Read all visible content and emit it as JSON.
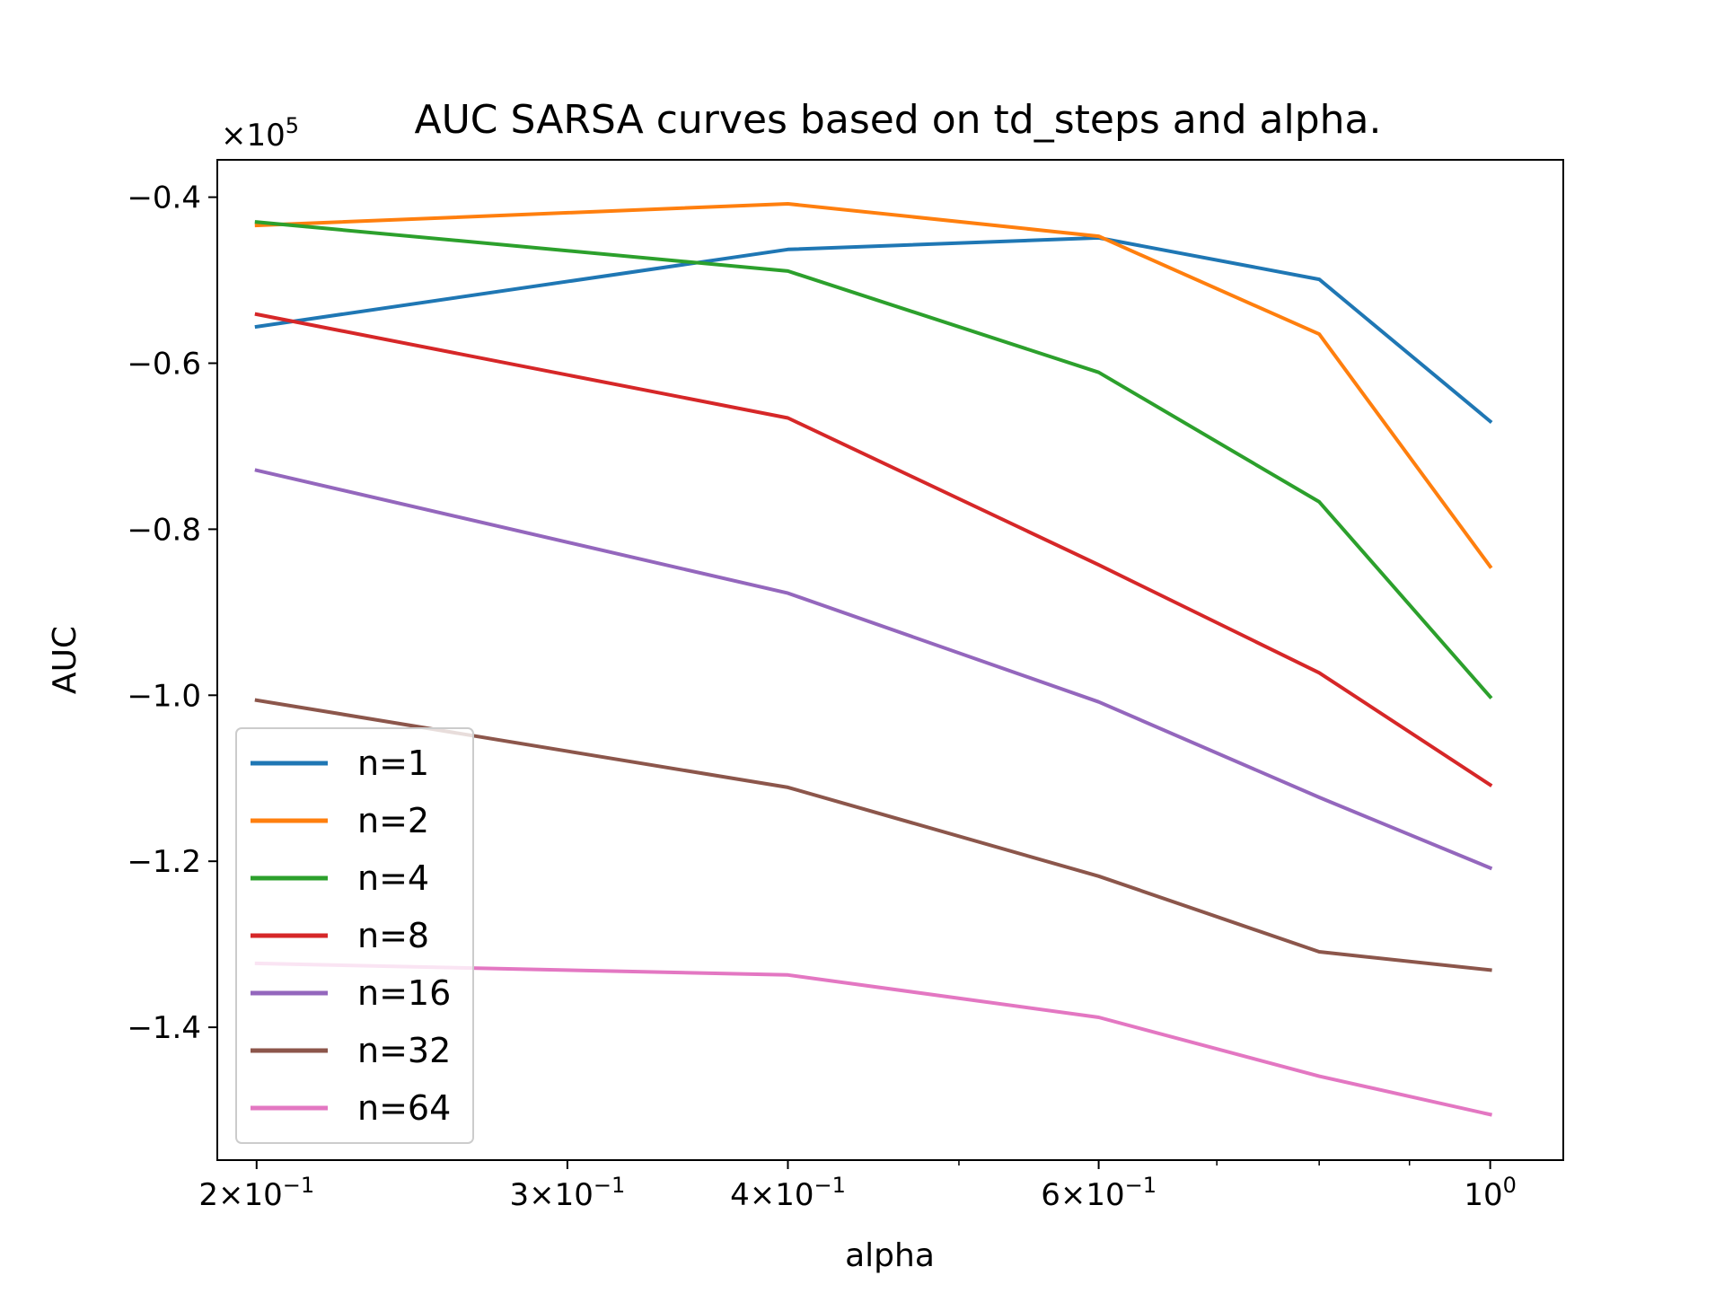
{
  "chart_data": {
    "type": "line",
    "title": "AUC SARSA curves based on td_steps and alpha.",
    "xlabel": "alpha",
    "ylabel": "AUC",
    "xscale": "log",
    "xlim": [
      0.19,
      1.1
    ],
    "ylim": [
      -1.56,
      -0.355
    ],
    "y_offset_label": {
      "base": "×10",
      "exp": "5"
    },
    "x_major_ticks": [
      {
        "value": 0.2,
        "mant": "2",
        "times": "×",
        "base": "10",
        "exp": "−1"
      },
      {
        "value": 0.3,
        "mant": "3",
        "times": "×",
        "base": "10",
        "exp": "−1"
      },
      {
        "value": 0.4,
        "mant": "4",
        "times": "×",
        "base": "10",
        "exp": "−1"
      },
      {
        "value": 0.6,
        "mant": "6",
        "times": "×",
        "base": "10",
        "exp": "−1"
      },
      {
        "value": 1.0,
        "mant": "",
        "times": "",
        "base": "10",
        "exp": "0"
      }
    ],
    "x_minor_ticks": [
      0.5,
      0.7,
      0.8,
      0.9
    ],
    "y_ticks": [
      {
        "value": -0.4,
        "label": "−0.4"
      },
      {
        "value": -0.6,
        "label": "−0.6"
      },
      {
        "value": -0.8,
        "label": "−0.8"
      },
      {
        "value": -1.0,
        "label": "−1.0"
      },
      {
        "value": -1.2,
        "label": "−1.2"
      },
      {
        "value": -1.4,
        "label": "−1.4"
      }
    ],
    "x": [
      0.2,
      0.4,
      0.6,
      0.8,
      1.0
    ],
    "series": [
      {
        "name": "n=1",
        "color": "#1f77b4",
        "values": [
          -0.556,
          -0.463,
          -0.449,
          -0.499,
          -0.67
        ]
      },
      {
        "name": "n=2",
        "color": "#ff7f0e",
        "values": [
          -0.434,
          -0.408,
          -0.447,
          -0.565,
          -0.845
        ]
      },
      {
        "name": "n=4",
        "color": "#2ca02c",
        "values": [
          -0.43,
          -0.489,
          -0.611,
          -0.767,
          -1.002
        ]
      },
      {
        "name": "n=8",
        "color": "#d62728",
        "values": [
          -0.541,
          -0.666,
          -0.843,
          -0.973,
          -1.108
        ]
      },
      {
        "name": "n=16",
        "color": "#9467bd",
        "values": [
          -0.729,
          -0.877,
          -1.008,
          -1.123,
          -1.208
        ]
      },
      {
        "name": "n=32",
        "color": "#8c564b",
        "values": [
          -1.006,
          -1.111,
          -1.218,
          -1.309,
          -1.331
        ]
      },
      {
        "name": "n=64",
        "color": "#e377c2",
        "values": [
          -1.323,
          -1.337,
          -1.388,
          -1.459,
          -1.505
        ]
      }
    ],
    "legend_placement": "lower-left",
    "grid": false
  }
}
